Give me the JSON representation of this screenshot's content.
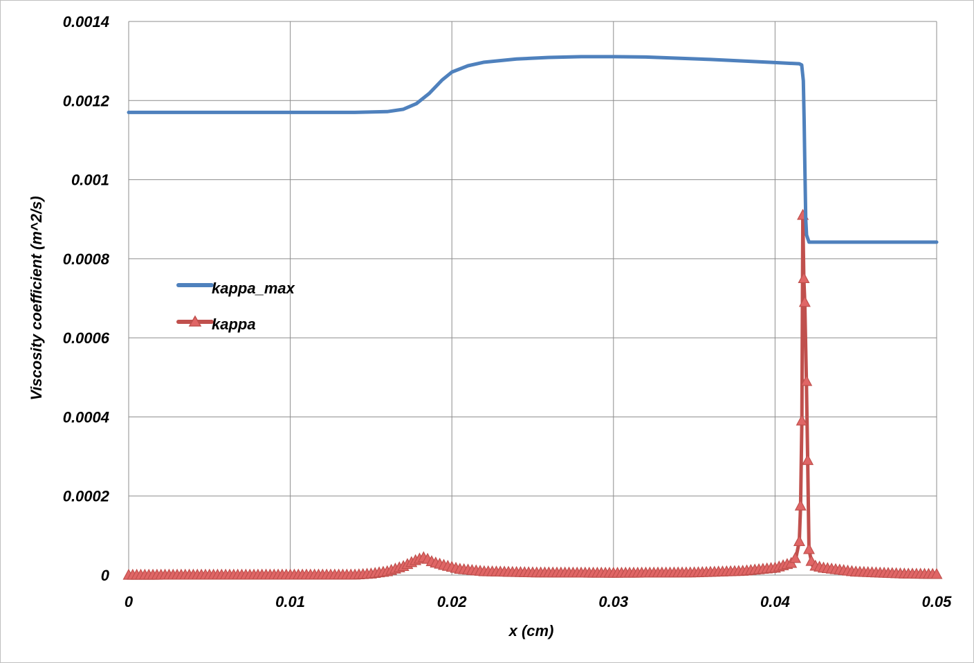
{
  "chart_data": {
    "type": "line",
    "xlabel": "x (cm)",
    "ylabel": "Viscosity coefficient (m^2/s)",
    "xlim": [
      0,
      0.05
    ],
    "ylim": [
      0,
      0.0014
    ],
    "x_ticks": [
      "0",
      "0.01",
      "0.02",
      "0.03",
      "0.04",
      "0.05"
    ],
    "y_ticks": [
      "0",
      "0.0002",
      "0.0004",
      "0.0006",
      "0.0008",
      "0.001",
      "0.0012",
      "0.0014"
    ],
    "grid": true,
    "legend_position": "left-middle",
    "series": [
      {
        "name": "kappa_max",
        "color": "#4f81bd",
        "marker": "none",
        "points": [
          [
            0,
            0.00117
          ],
          [
            0.005,
            0.00117
          ],
          [
            0.01,
            0.00117
          ],
          [
            0.014,
            0.00117
          ],
          [
            0.016,
            0.001172
          ],
          [
            0.017,
            0.001178
          ],
          [
            0.0178,
            0.001192
          ],
          [
            0.0186,
            0.001218
          ],
          [
            0.0194,
            0.001252
          ],
          [
            0.02,
            0.001272
          ],
          [
            0.021,
            0.001288
          ],
          [
            0.022,
            0.001297
          ],
          [
            0.024,
            0.001305
          ],
          [
            0.026,
            0.001309
          ],
          [
            0.028,
            0.001311
          ],
          [
            0.03,
            0.001311
          ],
          [
            0.032,
            0.00131
          ],
          [
            0.034,
            0.001307
          ],
          [
            0.036,
            0.001304
          ],
          [
            0.038,
            0.0013
          ],
          [
            0.04,
            0.001296
          ],
          [
            0.0415,
            0.001293
          ],
          [
            0.04165,
            0.00129
          ],
          [
            0.04175,
            0.00125
          ],
          [
            0.0418,
            0.00115
          ],
          [
            0.04185,
            0.00102
          ],
          [
            0.0419,
            0.0009
          ],
          [
            0.04195,
            0.00086
          ],
          [
            0.0421,
            0.000842
          ],
          [
            0.043,
            0.000842
          ],
          [
            0.045,
            0.000842
          ],
          [
            0.0475,
            0.000842
          ],
          [
            0.05,
            0.000842
          ]
        ]
      },
      {
        "name": "kappa",
        "color": "#c0504d",
        "marker": "triangle",
        "points": [
          [
            0,
            0
          ],
          [
            0.014,
            5e-07
          ],
          [
            0.015,
            3e-06
          ],
          [
            0.016,
            9e-06
          ],
          [
            0.017,
            2.2e-05
          ],
          [
            0.0178,
            3.8e-05
          ],
          [
            0.0183,
            4.5e-05
          ],
          [
            0.0188,
            3.3e-05
          ],
          [
            0.0195,
            2.5e-05
          ],
          [
            0.0205,
            1.5e-05
          ],
          [
            0.022,
            9e-06
          ],
          [
            0.025,
            6e-06
          ],
          [
            0.03,
            5e-06
          ],
          [
            0.035,
            6e-06
          ],
          [
            0.038,
            1e-05
          ],
          [
            0.04,
            1.8e-05
          ],
          [
            0.041,
            3e-05
          ],
          [
            0.0413,
            4.5e-05
          ],
          [
            0.0415,
            8.5e-05
          ],
          [
            0.04158,
            0.000175
          ],
          [
            0.04166,
            0.00039
          ],
          [
            0.04172,
            0.00091
          ],
          [
            0.04178,
            0.00075
          ],
          [
            0.04184,
            0.00069
          ],
          [
            0.04194,
            0.00049
          ],
          [
            0.04202,
            0.00029
          ],
          [
            0.0421,
            6.5e-05
          ],
          [
            0.0423,
            2.5e-05
          ],
          [
            0.043,
            1.8e-05
          ],
          [
            0.045,
            8e-06
          ],
          [
            0.048,
            3e-06
          ],
          [
            0.05,
            2e-06
          ]
        ]
      }
    ]
  }
}
